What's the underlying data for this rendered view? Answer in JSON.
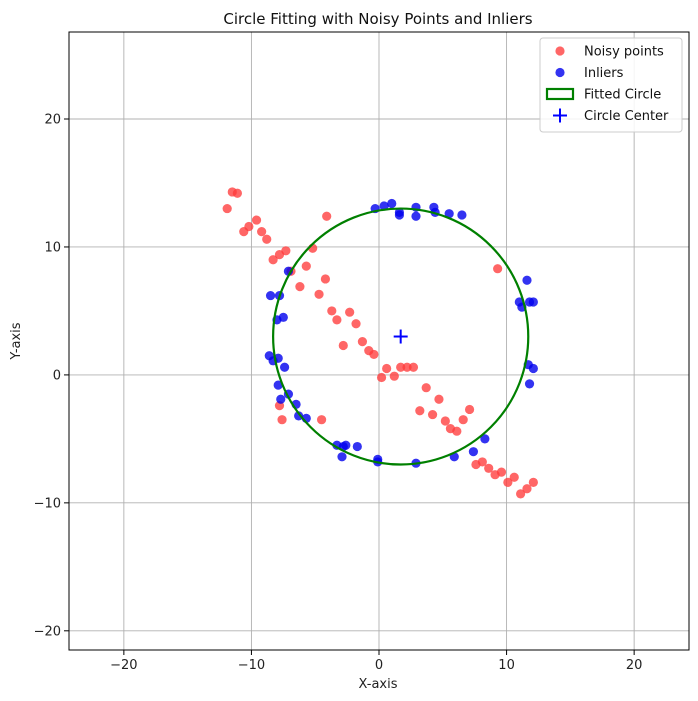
{
  "chart_data": {
    "type": "scatter",
    "title": "Circle Fitting with Noisy Points and Inliers",
    "xlabel": "X-axis",
    "ylabel": "Y-axis",
    "xlim": [
      -24.3,
      24.3
    ],
    "ylim": [
      -21.5,
      26.8
    ],
    "xticks": [
      -20,
      -10,
      0,
      10,
      20
    ],
    "yticks": [
      -20,
      -10,
      0,
      10,
      20
    ],
    "xtick_labels": [
      "−20",
      "−10",
      "0",
      "10",
      "20"
    ],
    "ytick_labels": [
      "−20",
      "−10",
      "0",
      "10",
      "20"
    ],
    "grid": true,
    "legend_position": "top-right",
    "legend": [
      {
        "label": "Noisy points",
        "kind": "noisy"
      },
      {
        "label": "Inliers",
        "kind": "inlier"
      },
      {
        "label": "Fitted Circle",
        "kind": "circle"
      },
      {
        "label": "Circle Center",
        "kind": "center"
      }
    ],
    "colors": {
      "noisy": "#ff3b3b",
      "inlier": "#0000ee",
      "circle": "#008000",
      "center": "#0000ff"
    },
    "fitted_circle": {
      "cx": 1.7,
      "cy": 3.0,
      "r": 10.0
    },
    "noisy_points": [
      [
        -11.9,
        13.0
      ],
      [
        -11.5,
        14.3
      ],
      [
        -11.1,
        14.2
      ],
      [
        -10.6,
        11.2
      ],
      [
        -10.2,
        11.6
      ],
      [
        -9.6,
        12.1
      ],
      [
        -9.2,
        11.2
      ],
      [
        -8.8,
        10.6
      ],
      [
        -8.3,
        9.0
      ],
      [
        -7.8,
        9.4
      ],
      [
        -7.3,
        9.7
      ],
      [
        -6.9,
        8.1
      ],
      [
        -6.2,
        6.9
      ],
      [
        -5.7,
        8.5
      ],
      [
        -5.2,
        9.9
      ],
      [
        -4.7,
        6.3
      ],
      [
        -4.2,
        7.5
      ],
      [
        -4.1,
        12.4
      ],
      [
        -3.7,
        5.0
      ],
      [
        -3.3,
        4.3
      ],
      [
        -2.8,
        2.3
      ],
      [
        -2.3,
        4.9
      ],
      [
        -1.8,
        4.0
      ],
      [
        -1.3,
        2.6
      ],
      [
        -0.8,
        1.9
      ],
      [
        -0.4,
        1.6
      ],
      [
        0.2,
        -0.2
      ],
      [
        0.6,
        0.5
      ],
      [
        1.2,
        -0.1
      ],
      [
        1.7,
        0.6
      ],
      [
        2.2,
        0.6
      ],
      [
        2.7,
        0.6
      ],
      [
        3.2,
        -2.8
      ],
      [
        3.7,
        -1.0
      ],
      [
        4.2,
        -3.1
      ],
      [
        4.7,
        -1.9
      ],
      [
        5.2,
        -3.6
      ],
      [
        5.6,
        -4.2
      ],
      [
        6.1,
        -4.4
      ],
      [
        6.6,
        -3.5
      ],
      [
        7.1,
        -2.7
      ],
      [
        7.6,
        -7.0
      ],
      [
        8.1,
        -6.8
      ],
      [
        8.6,
        -7.3
      ],
      [
        9.1,
        -7.8
      ],
      [
        9.3,
        8.3
      ],
      [
        9.6,
        -7.6
      ],
      [
        10.1,
        -8.4
      ],
      [
        10.6,
        -8.0
      ],
      [
        11.1,
        -9.3
      ],
      [
        11.6,
        -8.9
      ],
      [
        12.1,
        -8.4
      ],
      [
        -4.5,
        -3.5
      ],
      [
        -7.8,
        -2.4
      ],
      [
        -7.6,
        -3.5
      ]
    ],
    "inliers": [
      [
        -0.3,
        13.0
      ],
      [
        0.4,
        13.2
      ],
      [
        1.0,
        13.4
      ],
      [
        1.6,
        12.5
      ],
      [
        1.6,
        12.7
      ],
      [
        2.9,
        13.1
      ],
      [
        2.9,
        12.4
      ],
      [
        4.3,
        13.1
      ],
      [
        4.4,
        12.7
      ],
      [
        5.5,
        12.6
      ],
      [
        6.5,
        12.5
      ],
      [
        -7.1,
        8.1
      ],
      [
        -8.5,
        6.2
      ],
      [
        -7.8,
        6.2
      ],
      [
        -7.5,
        4.5
      ],
      [
        -8.0,
        4.3
      ],
      [
        -8.6,
        1.5
      ],
      [
        -8.3,
        1.1
      ],
      [
        -7.9,
        1.3
      ],
      [
        -7.4,
        0.6
      ],
      [
        -7.9,
        -0.8
      ],
      [
        -7.7,
        -1.9
      ],
      [
        -7.1,
        -1.5
      ],
      [
        -6.5,
        -2.3
      ],
      [
        -6.3,
        -3.2
      ],
      [
        -5.7,
        -3.4
      ],
      [
        -3.3,
        -5.5
      ],
      [
        -2.8,
        -5.6
      ],
      [
        -2.9,
        -6.4
      ],
      [
        -2.6,
        -5.5
      ],
      [
        -1.7,
        -5.6
      ],
      [
        -0.1,
        -6.8
      ],
      [
        -0.1,
        -6.6
      ],
      [
        2.9,
        -6.9
      ],
      [
        5.9,
        -6.4
      ],
      [
        7.4,
        -6.0
      ],
      [
        8.3,
        -5.0
      ],
      [
        11.0,
        5.7
      ],
      [
        11.2,
        5.3
      ],
      [
        11.6,
        7.4
      ],
      [
        11.8,
        5.7
      ],
      [
        12.1,
        5.7
      ],
      [
        11.7,
        0.8
      ],
      [
        12.1,
        0.5
      ],
      [
        11.8,
        -0.7
      ]
    ]
  }
}
